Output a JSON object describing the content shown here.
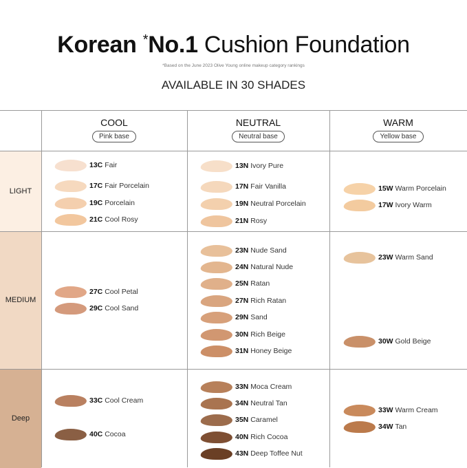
{
  "header": {
    "title_bold": "Korean",
    "title_star": "*",
    "title_no": "No.1",
    "title_rest": "Cushion Foundation",
    "footnote": "*Based on the June 2023 Olive Young online makeup category rankings",
    "subtitle": "AVAILABLE IN 30 SHADES"
  },
  "columns": [
    {
      "name": "COOL",
      "base": "Pink base"
    },
    {
      "name": "NEUTRAL",
      "base": "Neutral base"
    },
    {
      "name": "WARM",
      "base": "Yellow base"
    }
  ],
  "rows": [
    {
      "name": "LIGHT",
      "color": "#fcefe3"
    },
    {
      "name": "MEDIUM",
      "color": "#f1d9c4"
    },
    {
      "name": "Deep",
      "color": "#d6b193"
    }
  ],
  "shades": [
    {
      "code": "13C",
      "name": "Fair",
      "color": "#f7e0cf"
    },
    {
      "code": "17C",
      "name": "Fair Porcelain",
      "color": "#f6d9be"
    },
    {
      "code": "19C",
      "name": "Porcelain",
      "color": "#f4cfae"
    },
    {
      "code": "21C",
      "name": "Cool Rosy",
      "color": "#f2c79e"
    },
    {
      "code": "27C",
      "name": "Cool Petal",
      "color": "#e1a787"
    },
    {
      "code": "29C",
      "name": "Cool Sand",
      "color": "#d49a7c"
    },
    {
      "code": "33C",
      "name": "Cool Cream",
      "color": "#b98060"
    },
    {
      "code": "40C",
      "name": "Cocoa",
      "color": "#8a5f44"
    },
    {
      "code": "13N",
      "name": "Ivory Pure",
      "color": "#f7dfc9"
    },
    {
      "code": "17N",
      "name": "Fair Vanilla",
      "color": "#f5d8bc"
    },
    {
      "code": "19N",
      "name": "Neutral Porcelain",
      "color": "#f3d0ad"
    },
    {
      "code": "21N",
      "name": "Rosy",
      "color": "#efc59e"
    },
    {
      "code": "23N",
      "name": "Nude Sand",
      "color": "#e8c09a"
    },
    {
      "code": "24N",
      "name": "Natural Nude",
      "color": "#e3b68f"
    },
    {
      "code": "25N",
      "name": "Ratan",
      "color": "#e0b08a"
    },
    {
      "code": "27N",
      "name": "Rich Ratan",
      "color": "#d9a57f"
    },
    {
      "code": "29N",
      "name": "Sand",
      "color": "#d7a07a"
    },
    {
      "code": "30N",
      "name": "Rich Beige",
      "color": "#d19771"
    },
    {
      "code": "31N",
      "name": "Honey Beige",
      "color": "#cc8f67"
    },
    {
      "code": "33N",
      "name": "Moca Cream",
      "color": "#b7805a"
    },
    {
      "code": "34N",
      "name": "Neutral Tan",
      "color": "#a97450"
    },
    {
      "code": "35N",
      "name": "Caramel",
      "color": "#9c6c4c"
    },
    {
      "code": "40N",
      "name": "Rich Cocoa",
      "color": "#7e4f33"
    },
    {
      "code": "43N",
      "name": "Deep Toffee Nut",
      "color": "#6a3f25"
    },
    {
      "code": "15W",
      "name": "Warm Porcelain",
      "color": "#f6d2a8"
    },
    {
      "code": "17W",
      "name": "Ivory Warm",
      "color": "#f3cb9f"
    },
    {
      "code": "23W",
      "name": "Warm Sand",
      "color": "#e7c39c"
    },
    {
      "code": "30W",
      "name": "Gold Beige",
      "color": "#c99069"
    },
    {
      "code": "33W",
      "name": "Warm Cream",
      "color": "#c98a5c"
    },
    {
      "code": "34W",
      "name": "Tan",
      "color": "#bb7a4b"
    }
  ]
}
